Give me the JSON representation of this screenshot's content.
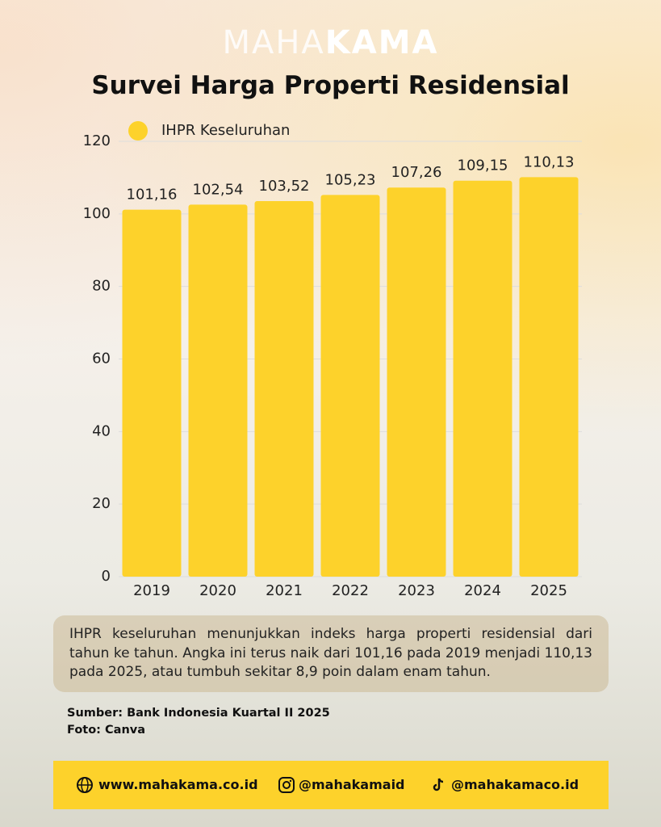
{
  "brand": [
    "MAHA",
    "KAMA"
  ],
  "chart_data": {
    "type": "bar",
    "title": "Survei Harga Properti Residensial",
    "categories": [
      "2019",
      "2020",
      "2021",
      "2022",
      "2023",
      "2024",
      "2025"
    ],
    "series": [
      {
        "name": "IHPR Keseluruhan",
        "color": "#fdd22b",
        "values": [
          101.16,
          102.54,
          103.52,
          105.23,
          107.26,
          109.15,
          110.13
        ],
        "value_labels": [
          "101,16",
          "102,54",
          "103,52",
          "105,23",
          "107,26",
          "109,15",
          "110,13"
        ]
      }
    ],
    "ylim": [
      0,
      120
    ],
    "yticks": [
      0,
      20,
      40,
      60,
      80,
      100,
      120
    ],
    "grid": true
  },
  "description": "IHPR keseluruhan menunjukkan indeks harga properti residensial dari tahun ke tahun. Angka ini terus naik dari 101,16 pada 2019 menjadi 110,13 pada 2025, atau tumbuh sekitar 8,9 poin dalam enam tahun.",
  "source": [
    "Sumber: Bank Indonesia Kuartal II 2025",
    "Foto: Canva"
  ],
  "footer": [
    "www.mahakama.co.id",
    "@mahakamaid",
    "@mahakamaco.id"
  ]
}
